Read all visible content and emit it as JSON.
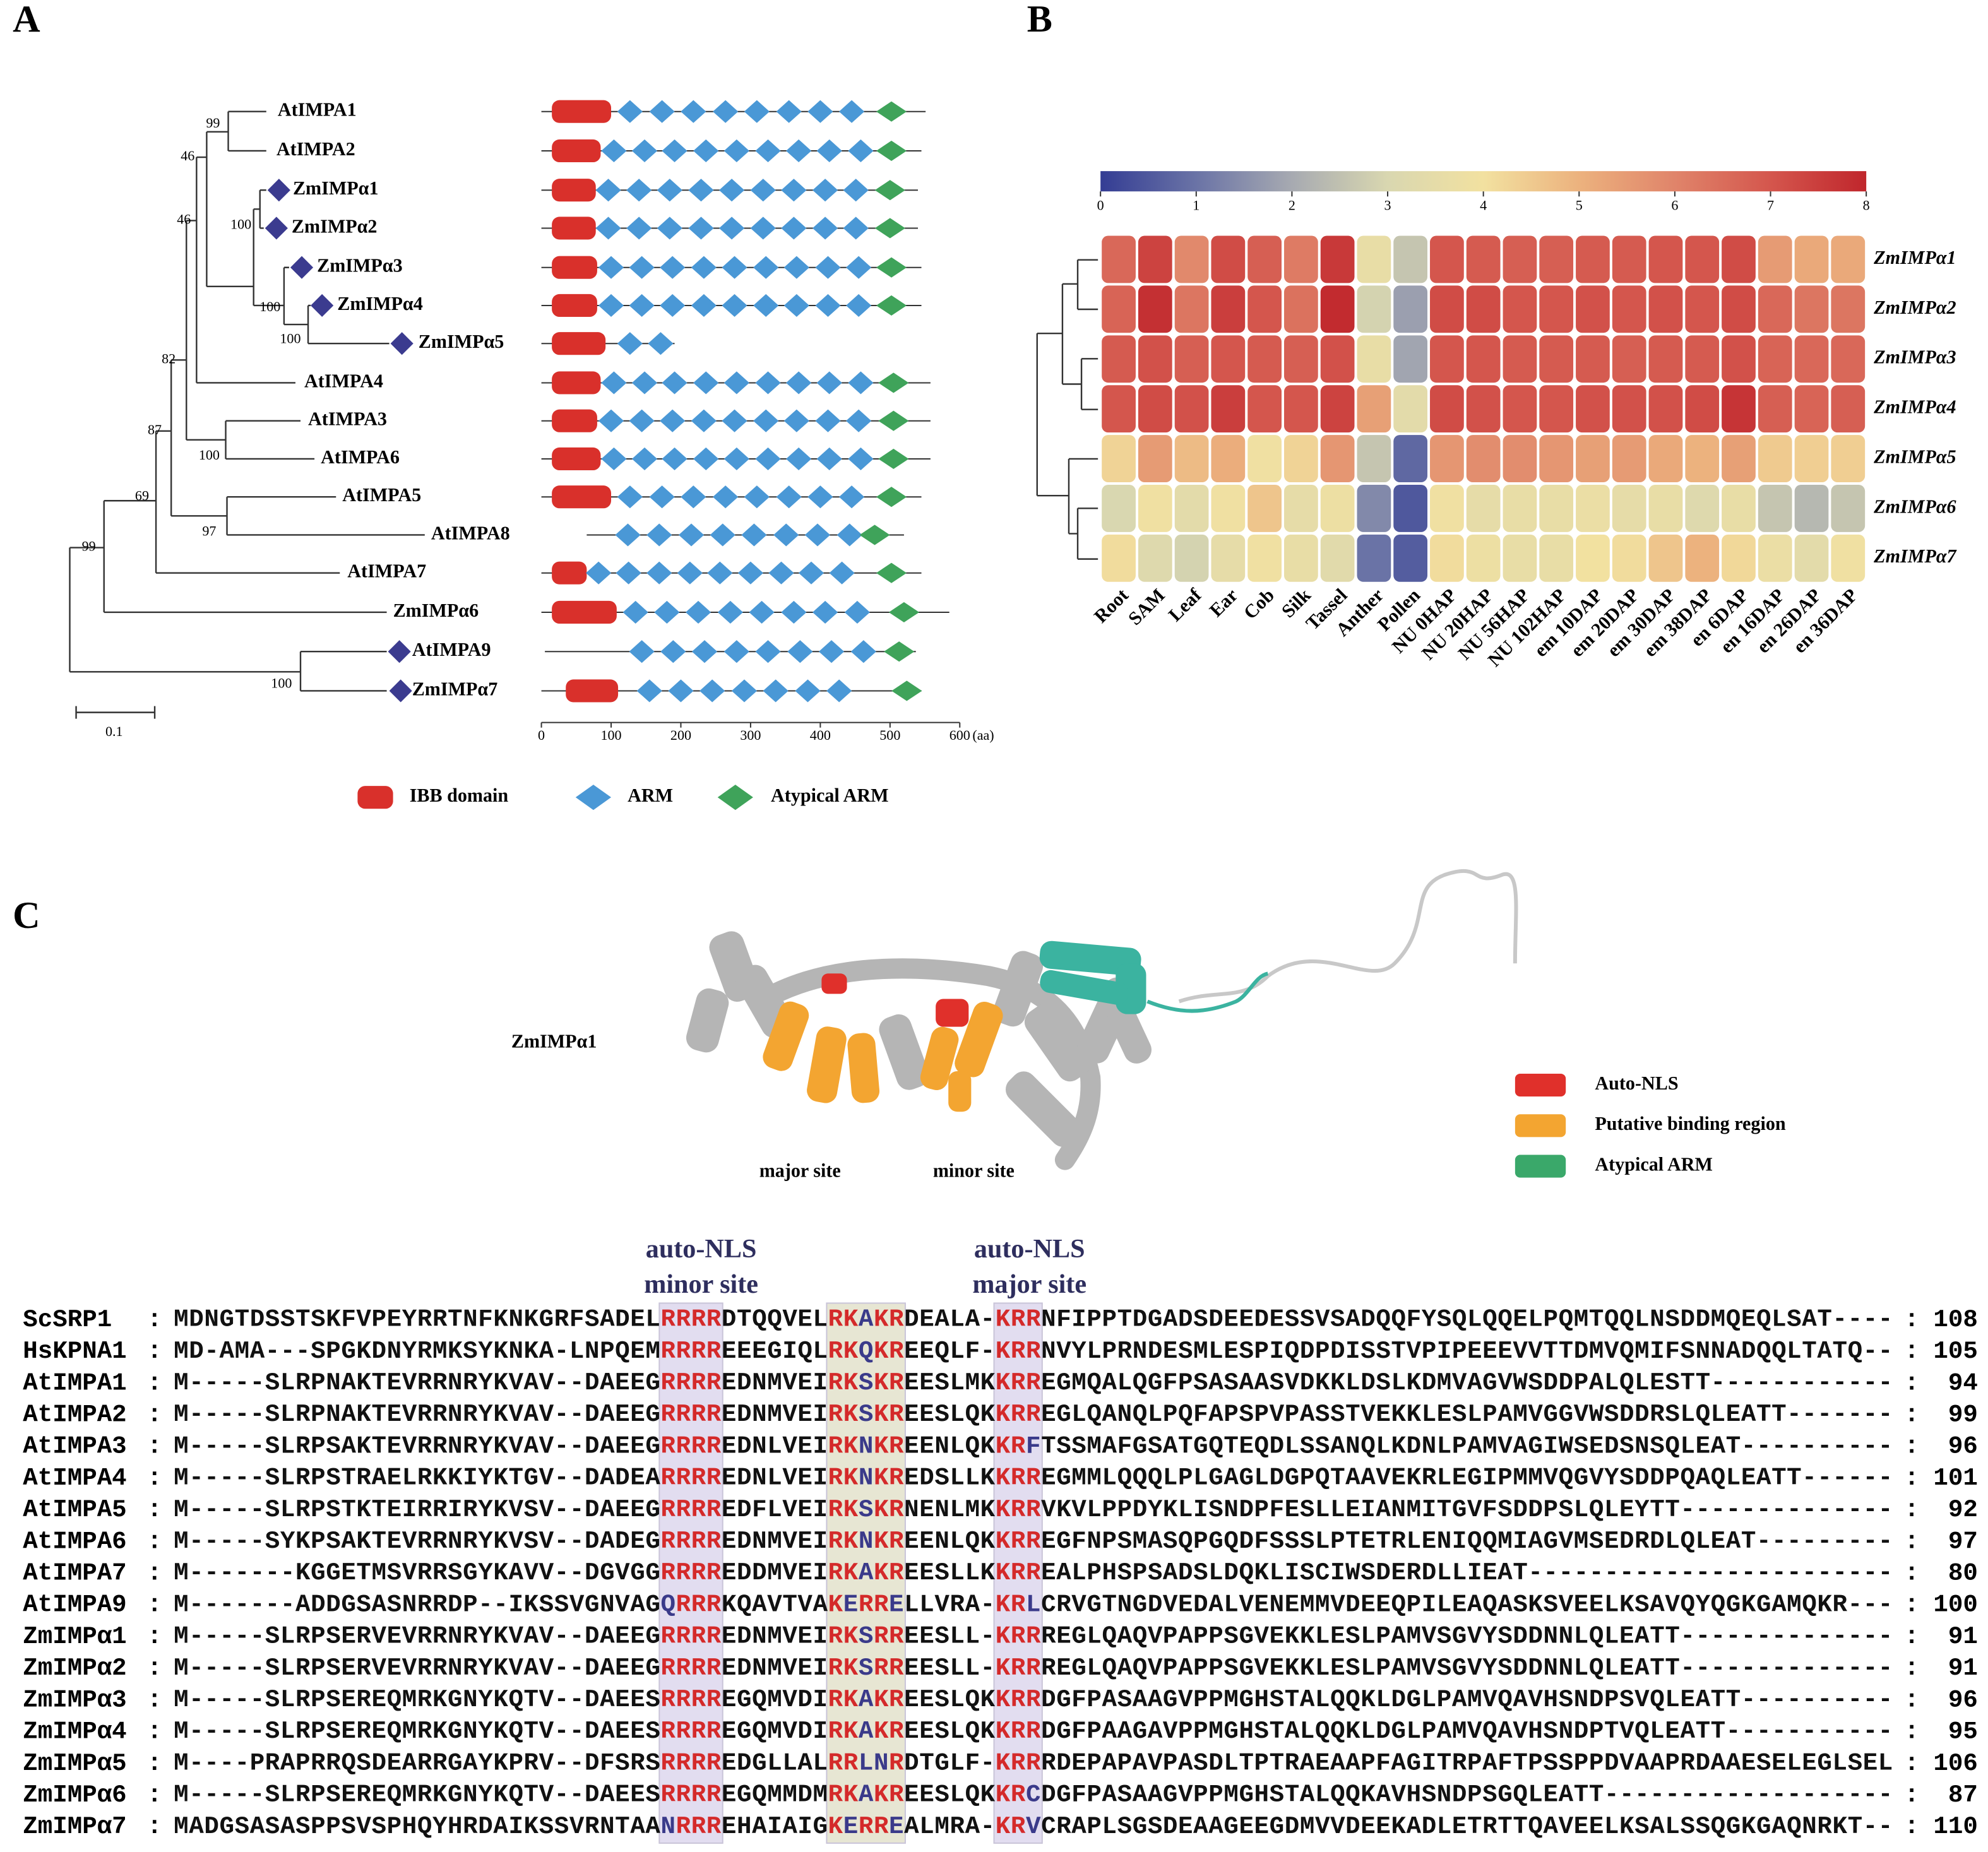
{
  "panel_labels": [
    "A",
    "B",
    "C"
  ],
  "tree": {
    "leaves": [
      "AtIMPA1",
      "AtIMPA2",
      "ZmIMPα1",
      "ZmIMPα2",
      "ZmIMPα3",
      "ZmIMPα4",
      "ZmIMPα5",
      "AtIMPA4",
      "AtIMPA3",
      "AtIMPA6",
      "AtIMPA5",
      "AtIMPA8",
      "AtIMPA7",
      "ZmIMPα6",
      "AtIMPA9",
      "ZmIMPα7"
    ],
    "bootstrap": [
      99,
      46,
      46,
      100,
      100,
      100,
      82,
      87,
      100,
      69,
      97,
      99,
      100
    ],
    "scale_bar": "0.1"
  },
  "chart_data": [
    {
      "type": "domain",
      "xlim": [
        0,
        600
      ],
      "xticks": [
        0,
        100,
        200,
        300,
        400,
        500,
        600
      ],
      "xlabel": "(aa)",
      "legend": [
        {
          "name": "IBB domain",
          "color": "#d9302b"
        },
        {
          "name": "ARM",
          "color": "#4a98d6"
        },
        {
          "name": "Atypical ARM",
          "color": "#3fa35a"
        }
      ],
      "rows": [
        {
          "start": 0,
          "end": 551,
          "ibb": [
            15,
            100
          ],
          "arm": [
            127,
            173,
            218,
            264,
            309,
            355,
            400,
            445
          ],
          "atypical": 502
        },
        {
          "start": 0,
          "end": 545,
          "ibb": [
            15,
            85
          ],
          "arm": [
            104,
            148,
            191,
            236,
            280,
            325,
            369,
            413,
            458
          ],
          "atypical": 502
        },
        {
          "start": 0,
          "end": 540,
          "ibb": [
            15,
            78
          ],
          "arm": [
            96,
            140,
            184,
            229,
            273,
            318,
            362,
            407,
            451
          ],
          "atypical": 500
        },
        {
          "start": 0,
          "end": 540,
          "ibb": [
            15,
            78
          ],
          "arm": [
            96,
            140,
            184,
            229,
            273,
            318,
            362,
            407,
            451
          ],
          "atypical": 500
        },
        {
          "start": 0,
          "end": 545,
          "ibb": [
            15,
            80
          ],
          "arm": [
            100,
            144,
            188,
            233,
            277,
            322,
            366,
            411,
            455
          ],
          "atypical": 502
        },
        {
          "start": 0,
          "end": 545,
          "ibb": [
            15,
            80
          ],
          "arm": [
            100,
            144,
            188,
            233,
            277,
            322,
            366,
            411,
            455
          ],
          "atypical": 502
        },
        {
          "start": 0,
          "end": 191,
          "ibb": [
            15,
            92
          ],
          "arm": [
            127,
            171
          ]
        },
        {
          "start": 0,
          "end": 558,
          "ibb": [
            15,
            85
          ],
          "arm": [
            104,
            148,
            191,
            236,
            280,
            325,
            369,
            413,
            458
          ],
          "atypical": 505
        },
        {
          "start": 0,
          "end": 558,
          "ibb": [
            15,
            80
          ],
          "arm": [
            100,
            144,
            188,
            233,
            277,
            322,
            366,
            411,
            455
          ],
          "atypical": 505
        },
        {
          "start": 0,
          "end": 558,
          "ibb": [
            15,
            85
          ],
          "arm": [
            104,
            148,
            191,
            236,
            280,
            325,
            369,
            413,
            458
          ],
          "atypical": 505
        },
        {
          "start": 0,
          "end": 545,
          "ibb": [
            15,
            100
          ],
          "arm": [
            127,
            173,
            218,
            264,
            309,
            355,
            400,
            445
          ],
          "atypical": 502
        },
        {
          "start": 65,
          "end": 520,
          "arm": [
            124,
            169,
            215,
            260,
            305,
            351,
            396,
            442
          ],
          "atypical": 478
        },
        {
          "start": 0,
          "end": 545,
          "ibb": [
            15,
            65
          ],
          "arm": [
            82,
            125,
            169,
            213,
            256,
            300,
            344,
            387,
            431
          ],
          "atypical": 502
        },
        {
          "start": 0,
          "end": 585,
          "ibb": [
            15,
            108
          ],
          "arm": [
            135,
            180,
            225,
            271,
            316,
            362,
            407,
            453
          ],
          "atypical": 520
        },
        {
          "start": 5,
          "end": 537,
          "arm": [
            144,
            189,
            234,
            280,
            325,
            371,
            416,
            462
          ],
          "atypical": 513
        },
        {
          "start": 0,
          "end": 545,
          "ibb": [
            35,
            110
          ],
          "arm": [
            155,
            200,
            245,
            291,
            336,
            382,
            427
          ],
          "atypical": 524
        }
      ]
    },
    {
      "type": "heatmap",
      "rows": [
        "ZmIMPα1",
        "ZmIMPα2",
        "ZmIMPα3",
        "ZmIMPα4",
        "ZmIMPα5",
        "ZmIMPα6",
        "ZmIMPα7"
      ],
      "columns": [
        "Root",
        "SAM",
        "Leaf",
        "Ear",
        "Cob",
        "Silk",
        "Tassel",
        "Anther",
        "Pollen",
        "NU 0HAP",
        "NU 20HAP",
        "NU 56HAP",
        "NU 102HAP",
        "em 10DAP",
        "em 20DAP",
        "em 30DAP",
        "em 38DAP",
        "en 6DAP",
        "en 16DAP",
        "en 26DAP",
        "en 36DAP"
      ],
      "values": [
        [
          6.6,
          7.4,
          5.9,
          7.2,
          6.8,
          6.2,
          7.6,
          3.6,
          2.6,
          7.0,
          6.9,
          6.8,
          6.8,
          6.9,
          6.9,
          7.0,
          7.0,
          7.2,
          5.5,
          5.2,
          5.2
        ],
        [
          6.7,
          7.8,
          6.3,
          7.5,
          7.0,
          6.4,
          7.9,
          2.9,
          1.8,
          7.2,
          7.2,
          7.0,
          7.0,
          7.1,
          7.0,
          7.1,
          7.0,
          7.2,
          6.6,
          6.3,
          6.3
        ],
        [
          6.9,
          7.1,
          6.8,
          7.0,
          6.9,
          6.8,
          7.1,
          3.6,
          1.9,
          7.0,
          7.0,
          6.9,
          6.9,
          6.9,
          6.8,
          6.9,
          6.9,
          7.1,
          6.7,
          6.6,
          6.6
        ],
        [
          7.0,
          7.2,
          7.1,
          7.5,
          7.0,
          7.0,
          7.4,
          5.4,
          3.4,
          7.2,
          7.1,
          7.0,
          7.0,
          7.1,
          7.1,
          7.1,
          7.2,
          7.7,
          6.8,
          6.7,
          6.8
        ],
        [
          4.3,
          5.5,
          4.8,
          5.1,
          3.9,
          4.3,
          5.6,
          2.6,
          0.8,
          5.6,
          5.8,
          5.8,
          5.6,
          5.4,
          5.5,
          5.2,
          5.0,
          5.4,
          4.5,
          4.4,
          4.4
        ],
        [
          3.0,
          3.9,
          3.4,
          3.9,
          4.6,
          3.5,
          3.8,
          1.4,
          0.5,
          3.9,
          3.5,
          3.6,
          3.6,
          3.7,
          3.5,
          3.6,
          3.2,
          3.6,
          2.6,
          2.3,
          2.6
        ],
        [
          4.1,
          3.2,
          2.9,
          3.5,
          3.9,
          3.6,
          3.3,
          1.0,
          0.6,
          4.1,
          3.8,
          3.6,
          3.6,
          4.0,
          4.1,
          4.6,
          5.0,
          4.2,
          3.7,
          3.4,
          3.9
        ]
      ],
      "colorbar": {
        "lim": [
          0,
          8
        ],
        "ticks": [
          0,
          1,
          2,
          3,
          4,
          5,
          6,
          7,
          8
        ],
        "colors": [
          "#343d94",
          "#6a73a6",
          "#a7aab1",
          "#d9d7b0",
          "#f2e1a0",
          "#ecb27e",
          "#e0846a",
          "#d4564d",
          "#c0262c"
        ]
      }
    }
  ],
  "structure": {
    "title": "ZmIMPα1",
    "sites": [
      "major site",
      "minor site"
    ],
    "legend": [
      {
        "label": "Auto-NLS",
        "color": "#e0302b"
      },
      {
        "label": "Putative binding region",
        "color": "#f3a531"
      },
      {
        "label": "Atypical ARM",
        "color": "#3aa86a"
      }
    ]
  },
  "alignment": {
    "headers": [
      [
        "auto-NLS",
        "minor site"
      ],
      [
        "auto-NLS",
        "major site"
      ]
    ],
    "separator": ":",
    "rows": [
      {
        "name": "ScSRP1",
        "sequence": "MDNGTDSSTSKFVPEYRRTNFKNKGRFSADELRRRRDTQQVELRKAKRDEALA-KRRNFIPPTDGADSDEEDESSVSADQQFYSQLQQELPQMTQQLNSDDMQEQLSAT----",
        "end": 108
      },
      {
        "name": "HsKPNA1",
        "sequence": "MD-AMA---SPGKDNYRMKSYKNKA-LNPQEMRRRREEEGIQLRKQKREEQLF-KRRNVYLPRNDESMLESPIQDPDISSTVPIPEEEVVTTDMVQMIFSNNADQQLTATQ--",
        "end": 105
      },
      {
        "name": "AtIMPA1",
        "sequence": "M-----SLRPNAKTEVRRNRYKVAV--DAEEGRRRREDNMVEIRKSKREESLMKKRREGMQALQGFPSASAASVDKKLDSLKDMVAGVWSDDPALQLESTT------------",
        "end": 94
      },
      {
        "name": "AtIMPA2",
        "sequence": "M-----SLRPNAKTEVRRNRYKVAV--DAEEGRRRREDNMVEIRKSKREESLQKKRREGLQANQLPQFAPSPVPASSTVEKKLESLPAMVGGVWSDDRSLQLEATT-------",
        "end": 99
      },
      {
        "name": "AtIMPA3",
        "sequence": "M-----SLRPSAKTEVRRNRYKVAV--DAEEGRRRREDNLVEIRKNKREENLQKKRFTSSMAFGSATGQTEQDLSSANQLKDNLPAMVAGIWSEDSNSQLEAT----------",
        "end": 96
      },
      {
        "name": "AtIMPA4",
        "sequence": "M-----SLRPSTRAELRKKIYKTGV--DADEARRRREDNLVEIRKNKREDSLLKKRREGMMLQQQLPLGAGLDGPQTAAVEKRLEGIPMMVQGVYSDDPQAQLEATT------",
        "end": 101
      },
      {
        "name": "AtIMPA5",
        "sequence": "M-----SLRPSTKTEIRRIRYKVSV--DAEEGRRRREDFLVEIRKSKRNENLMKKRRVKVLPPDYKLISNDPFESLLEIANMITGVFSDDPSLQLEYTT--------------",
        "end": 92
      },
      {
        "name": "AtIMPA6",
        "sequence": "M-----SYKPSAKTEVRRNRYKVSV--DADEGRRRREDNMVEIRKNKREENLQKKRREGFNPSMASQPGQDFSSSLPTETRLENIQQMIAGVMSEDRDLQLEAT---------",
        "end": 97
      },
      {
        "name": "AtIMPA7",
        "sequence": "M-------KGGETMSVRRSGYKAVV--DGVGGRRRREDDMVEIRKAKREESLLKKRREALPHSPSADSLDQKLISCIWSDERDLLIEAT------------------------",
        "end": 80
      },
      {
        "name": "AtIMPA9",
        "sequence": "M-------ADDGSASNRRDP--IKSSVGNVAGQRRRKQAVTVAKERRELLVRA-KRLCRVGTNGDVEDALVENEMMVDEEQPILEAQASKSVEELKSAVQYQGKGAMQKR---",
        "end": 100
      },
      {
        "name": "ZmIMPα1",
        "sequence": "M-----SLRPSERVEVRRNRYKVAV--DAEEGRRRREDNMVEIRKSRREESLL-KRRREGLQAQVPAPPSGVEKKLESLPAMVSGVYSDDNNLQLEATT--------------",
        "end": 91
      },
      {
        "name": "ZmIMPα2",
        "sequence": "M-----SLRPSERVEVRRNRYKVAV--DAEEGRRRREDNMVEIRKSRREESLL-KRRREGLQAQVPAPPSGVEKKLESLPAMVSGVYSDDNNLQLEATT--------------",
        "end": 91
      },
      {
        "name": "ZmIMPα3",
        "sequence": "M-----SLRPSEREQMRKGNYKQTV--DAEESRRRREGQMVDIRKAKREESLQKKRRDGFPASAAGVPPMGHSTALQQKLDGLPAMVQAVHSNDPSVQLEATT----------",
        "end": 96
      },
      {
        "name": "ZmIMPα4",
        "sequence": "M-----SLRPSEREQMRKGNYKQTV--DAEESRRRREGQMVDIRKAKREESLQKKRRDGFPAAGAVPPMGHSTALQQKLDGLPAMVQAVHSNDPTVQLEATT-----------",
        "end": 95
      },
      {
        "name": "ZmIMPα5",
        "sequence": "M----PRAPRRQSDEARRGAYKPRV--DFSRSRRRREDGLLALRRLNRDTGLF-KRRRDEPAPAVPASDLTPTRAEAAPFAGITRPAFTPSSPPDVAAPRDAAESELEGLSEL",
        "end": 106
      },
      {
        "name": "ZmIMPα6",
        "sequence": "M-----SLRPSEREQMRKGNYKQTV--DAEESRRRREGQMMDMRKAKREESLQKKRCDGFPASAAGVPPMGHSTALQQKAVHSNDPSGQLEATT-------------------",
        "end": 87
      },
      {
        "name": "ZmIMPα7",
        "sequence": "MADGSASASPPSVSPHQYHRDAIKSSVRNTAANRRREHAIAIGKERREALMRA-KRVCRAPLSGSDEAAGEEGDMVVDEEKADLETRTTQAVEELKSALSSQGKGAQNRKT--",
        "end": 110
      }
    ]
  }
}
